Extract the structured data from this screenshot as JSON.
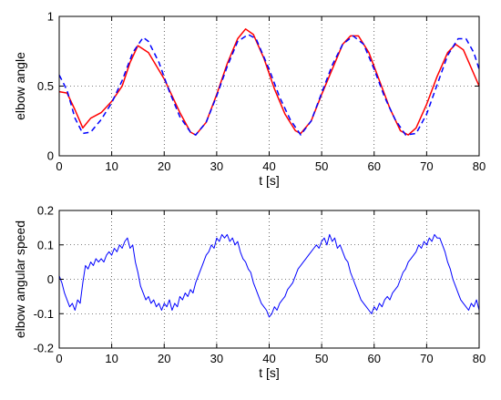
{
  "chart_data": [
    {
      "type": "line",
      "xlabel": "t [s]",
      "ylabel": "elbow angle",
      "xlim": [
        0,
        80
      ],
      "ylim": [
        0,
        1
      ],
      "xticks": [
        "0",
        "10",
        "20",
        "30",
        "40",
        "50",
        "60",
        "70",
        "80"
      ],
      "yticks": [
        "0",
        "0.5",
        "1"
      ],
      "grid": true,
      "series": [
        {
          "style": "solid",
          "color": "#ff0000",
          "points": [
            [
              0,
              0.46
            ],
            [
              1.5,
              0.45
            ],
            [
              3,
              0.33
            ],
            [
              4.5,
              0.2
            ],
            [
              6,
              0.27
            ],
            [
              8,
              0.31
            ],
            [
              10,
              0.39
            ],
            [
              12,
              0.5
            ],
            [
              13.5,
              0.67
            ],
            [
              15,
              0.79
            ],
            [
              17,
              0.74
            ],
            [
              20,
              0.55
            ],
            [
              23,
              0.31
            ],
            [
              25,
              0.17
            ],
            [
              26,
              0.15
            ],
            [
              28,
              0.24
            ],
            [
              30,
              0.44
            ],
            [
              32,
              0.66
            ],
            [
              34,
              0.84
            ],
            [
              35.5,
              0.91
            ],
            [
              37,
              0.87
            ],
            [
              39,
              0.7
            ],
            [
              41,
              0.48
            ],
            [
              43,
              0.3
            ],
            [
              45,
              0.18
            ],
            [
              46,
              0.16
            ],
            [
              48,
              0.25
            ],
            [
              50,
              0.44
            ],
            [
              52,
              0.62
            ],
            [
              54,
              0.8
            ],
            [
              55.5,
              0.86
            ],
            [
              57,
              0.86
            ],
            [
              59,
              0.74
            ],
            [
              61,
              0.54
            ],
            [
              63,
              0.34
            ],
            [
              65,
              0.18
            ],
            [
              66.5,
              0.15
            ],
            [
              68,
              0.2
            ],
            [
              70,
              0.37
            ],
            [
              72,
              0.57
            ],
            [
              74,
              0.74
            ],
            [
              75.5,
              0.8
            ],
            [
              77,
              0.76
            ],
            [
              80,
              0.5
            ]
          ]
        },
        {
          "style": "dashed",
          "color": "#0000ff",
          "points": [
            [
              0,
              0.58
            ],
            [
              1.5,
              0.47
            ],
            [
              3,
              0.27
            ],
            [
              4.5,
              0.16
            ],
            [
              6,
              0.17
            ],
            [
              8,
              0.26
            ],
            [
              10,
              0.38
            ],
            [
              12,
              0.54
            ],
            [
              14,
              0.74
            ],
            [
              16,
              0.85
            ],
            [
              17,
              0.82
            ],
            [
              19,
              0.67
            ],
            [
              21,
              0.46
            ],
            [
              23,
              0.28
            ],
            [
              25,
              0.17
            ],
            [
              26,
              0.15
            ],
            [
              28,
              0.24
            ],
            [
              30,
              0.43
            ],
            [
              32,
              0.64
            ],
            [
              34,
              0.82
            ],
            [
              36,
              0.87
            ],
            [
              37.5,
              0.84
            ],
            [
              40,
              0.62
            ],
            [
              42,
              0.42
            ],
            [
              44,
              0.26
            ],
            [
              46,
              0.15
            ],
            [
              48,
              0.25
            ],
            [
              50,
              0.45
            ],
            [
              52,
              0.65
            ],
            [
              54,
              0.8
            ],
            [
              56,
              0.86
            ],
            [
              58,
              0.8
            ],
            [
              60,
              0.62
            ],
            [
              62,
              0.42
            ],
            [
              64,
              0.26
            ],
            [
              66,
              0.15
            ],
            [
              68,
              0.16
            ],
            [
              70,
              0.3
            ],
            [
              72,
              0.51
            ],
            [
              74,
              0.72
            ],
            [
              76,
              0.84
            ],
            [
              77.5,
              0.84
            ],
            [
              79,
              0.74
            ],
            [
              80,
              0.62
            ]
          ]
        }
      ]
    },
    {
      "type": "line",
      "xlabel": "t [s]",
      "ylabel": "elbow angular speed",
      "xlim": [
        0,
        80
      ],
      "ylim": [
        -0.2,
        0.2
      ],
      "xticks": [
        "0",
        "10",
        "20",
        "30",
        "40",
        "50",
        "60",
        "70",
        "80"
      ],
      "yticks": [
        "-0.2",
        "-0.1",
        "0",
        "0.1",
        "0.2"
      ],
      "grid": true,
      "series": [
        {
          "style": "solid",
          "color": "#0000ff",
          "points": [
            [
              0,
              0.01
            ],
            [
              0.5,
              -0.01
            ],
            [
              1,
              -0.04
            ],
            [
              1.5,
              -0.06
            ],
            [
              2,
              -0.08
            ],
            [
              2.5,
              -0.07
            ],
            [
              3,
              -0.09
            ],
            [
              3.5,
              -0.06
            ],
            [
              4,
              -0.07
            ],
            [
              4.5,
              -0.01
            ],
            [
              5,
              0.04
            ],
            [
              5.5,
              0.03
            ],
            [
              6,
              0.05
            ],
            [
              6.5,
              0.04
            ],
            [
              7,
              0.06
            ],
            [
              7.5,
              0.05
            ],
            [
              8,
              0.06
            ],
            [
              8.5,
              0.05
            ],
            [
              9,
              0.07
            ],
            [
              9.5,
              0.08
            ],
            [
              10,
              0.07
            ],
            [
              10.5,
              0.09
            ],
            [
              11,
              0.08
            ],
            [
              11.5,
              0.1
            ],
            [
              12,
              0.09
            ],
            [
              12.5,
              0.11
            ],
            [
              13,
              0.12
            ],
            [
              13.5,
              0.09
            ],
            [
              14,
              0.1
            ],
            [
              14.5,
              0.05
            ],
            [
              15,
              0.02
            ],
            [
              15.5,
              -0.02
            ],
            [
              16,
              -0.04
            ],
            [
              16.5,
              -0.06
            ],
            [
              17,
              -0.05
            ],
            [
              17.5,
              -0.07
            ],
            [
              18,
              -0.06
            ],
            [
              18.5,
              -0.08
            ],
            [
              19,
              -0.07
            ],
            [
              19.5,
              -0.09
            ],
            [
              20,
              -0.07
            ],
            [
              20.5,
              -0.08
            ],
            [
              21,
              -0.06
            ],
            [
              21.5,
              -0.09
            ],
            [
              22,
              -0.07
            ],
            [
              22.5,
              -0.08
            ],
            [
              23,
              -0.05
            ],
            [
              23.5,
              -0.06
            ],
            [
              24,
              -0.04
            ],
            [
              24.5,
              -0.05
            ],
            [
              25,
              -0.03
            ],
            [
              25.5,
              -0.04
            ],
            [
              26,
              -0.01
            ],
            [
              26.5,
              0.01
            ],
            [
              27,
              0.03
            ],
            [
              27.5,
              0.05
            ],
            [
              28,
              0.07
            ],
            [
              28.5,
              0.08
            ],
            [
              29,
              0.1
            ],
            [
              29.5,
              0.09
            ],
            [
              30,
              0.12
            ],
            [
              30.5,
              0.11
            ],
            [
              31,
              0.13
            ],
            [
              31.5,
              0.12
            ],
            [
              32,
              0.13
            ],
            [
              32.5,
              0.11
            ],
            [
              33,
              0.12
            ],
            [
              33.5,
              0.1
            ],
            [
              34,
              0.11
            ],
            [
              34.5,
              0.08
            ],
            [
              35,
              0.06
            ],
            [
              35.5,
              0.05
            ],
            [
              36,
              0.03
            ],
            [
              36.5,
              0.02
            ],
            [
              37,
              -0.01
            ],
            [
              37.5,
              -0.03
            ],
            [
              38,
              -0.05
            ],
            [
              38.5,
              -0.07
            ],
            [
              39,
              -0.08
            ],
            [
              39.5,
              -0.09
            ],
            [
              40,
              -0.11
            ],
            [
              40.5,
              -0.1
            ],
            [
              41,
              -0.08
            ],
            [
              41.5,
              -0.09
            ],
            [
              42,
              -0.07
            ],
            [
              42.5,
              -0.06
            ],
            [
              43,
              -0.05
            ],
            [
              43.5,
              -0.03
            ],
            [
              44,
              -0.02
            ],
            [
              44.5,
              -0.01
            ],
            [
              45,
              0.01
            ],
            [
              45.5,
              0.03
            ],
            [
              46,
              0.04
            ],
            [
              46.5,
              0.05
            ],
            [
              47,
              0.06
            ],
            [
              47.5,
              0.07
            ],
            [
              48,
              0.08
            ],
            [
              48.5,
              0.09
            ],
            [
              49,
              0.1
            ],
            [
              49.5,
              0.09
            ],
            [
              50,
              0.11
            ],
            [
              50.5,
              0.12
            ],
            [
              51,
              0.1
            ],
            [
              51.5,
              0.13
            ],
            [
              52,
              0.11
            ],
            [
              52.5,
              0.12
            ],
            [
              53,
              0.09
            ],
            [
              53.5,
              0.1
            ],
            [
              54,
              0.08
            ],
            [
              54.5,
              0.06
            ],
            [
              55,
              0.05
            ],
            [
              55.5,
              0.02
            ],
            [
              56,
              0
            ],
            [
              56.5,
              -0.02
            ],
            [
              57,
              -0.04
            ],
            [
              57.5,
              -0.06
            ],
            [
              58,
              -0.07
            ],
            [
              58.5,
              -0.08
            ],
            [
              59,
              -0.09
            ],
            [
              59.5,
              -0.1
            ],
            [
              60,
              -0.08
            ],
            [
              60.5,
              -0.09
            ],
            [
              61,
              -0.07
            ],
            [
              61.5,
              -0.08
            ],
            [
              62,
              -0.06
            ],
            [
              62.5,
              -0.05
            ],
            [
              63,
              -0.06
            ],
            [
              63.5,
              -0.04
            ],
            [
              64,
              -0.03
            ],
            [
              64.5,
              -0.02
            ],
            [
              65,
              0
            ],
            [
              65.5,
              0.02
            ],
            [
              66,
              0.03
            ],
            [
              66.5,
              0.05
            ],
            [
              67,
              0.06
            ],
            [
              67.5,
              0.07
            ],
            [
              68,
              0.08
            ],
            [
              68.5,
              0.1
            ],
            [
              69,
              0.09
            ],
            [
              69.5,
              0.11
            ],
            [
              70,
              0.1
            ],
            [
              70.5,
              0.12
            ],
            [
              71,
              0.11
            ],
            [
              71.5,
              0.13
            ],
            [
              72,
              0.12
            ],
            [
              72.5,
              0.12
            ],
            [
              73,
              0.1
            ],
            [
              73.5,
              0.08
            ],
            [
              74,
              0.05
            ],
            [
              74.5,
              0.03
            ],
            [
              75,
              0
            ],
            [
              75.5,
              -0.02
            ],
            [
              76,
              -0.04
            ],
            [
              76.5,
              -0.06
            ],
            [
              77,
              -0.07
            ],
            [
              77.5,
              -0.08
            ],
            [
              78,
              -0.09
            ],
            [
              78.5,
              -0.07
            ],
            [
              79,
              -0.08
            ],
            [
              79.5,
              -0.06
            ],
            [
              80,
              -0.09
            ]
          ]
        }
      ]
    }
  ]
}
